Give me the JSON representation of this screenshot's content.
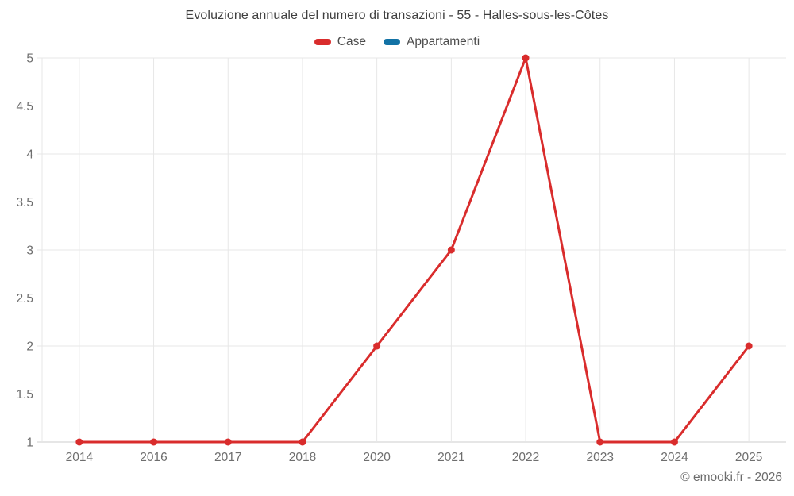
{
  "chart_data": {
    "type": "line",
    "title": "Evoluzione annuale del numero di transazioni - 55 - Halles-sous-les-Côtes",
    "categories": [
      "2014",
      "2016",
      "2017",
      "2018",
      "2020",
      "2021",
      "2022",
      "2023",
      "2024",
      "2025"
    ],
    "series": [
      {
        "name": "Case",
        "color": "#d92c2c",
        "values": [
          1,
          1,
          1,
          1,
          2,
          3,
          5,
          1,
          1,
          2
        ]
      },
      {
        "name": "Appartamenti",
        "color": "#1272a5",
        "values": []
      }
    ],
    "ylim": [
      1,
      5
    ],
    "ytick_step": 0.5,
    "ytick_labels": [
      "1",
      "1.5",
      "2",
      "2.5",
      "3",
      "3.5",
      "4",
      "4.5",
      "5"
    ],
    "grid": true,
    "legend_position": "top",
    "xlabel": "",
    "ylabel": "",
    "marker": "circle",
    "colors": {
      "gridline": "#e7e7e7",
      "axis_line": "#cccccc",
      "tick_label": "#6e6e6e",
      "title_text": "#3f3f3f",
      "legend_text": "#4d4d4d",
      "background": "#ffffff"
    }
  },
  "footer": {
    "copyright": "© emooki.fr - 2026"
  }
}
